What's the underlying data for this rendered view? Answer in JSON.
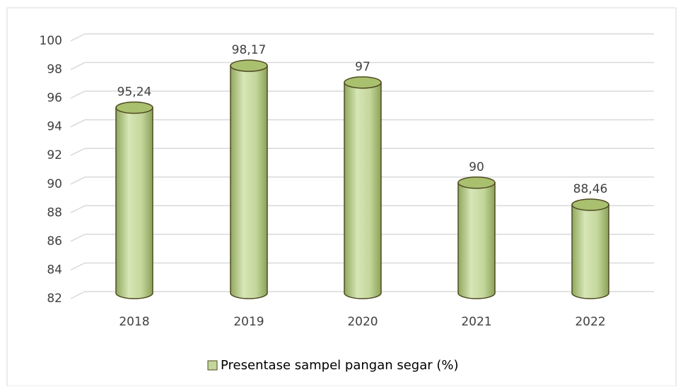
{
  "chart_data": {
    "type": "bar",
    "categories": [
      "2018",
      "2019",
      "2020",
      "2021",
      "2022"
    ],
    "series": [
      {
        "name": "Presentase sampel pangan segar (%)",
        "color": "#c3d69b",
        "values": [
          95.24,
          98.17,
          97,
          90,
          88.46
        ],
        "value_labels": [
          "95,24",
          "98,17",
          "97",
          "90",
          "88,46"
        ]
      }
    ],
    "ylim": [
      82,
      100
    ],
    "yticks": [
      82,
      84,
      86,
      88,
      90,
      92,
      94,
      96,
      98,
      100
    ],
    "grid": true,
    "legend": "bottom"
  }
}
